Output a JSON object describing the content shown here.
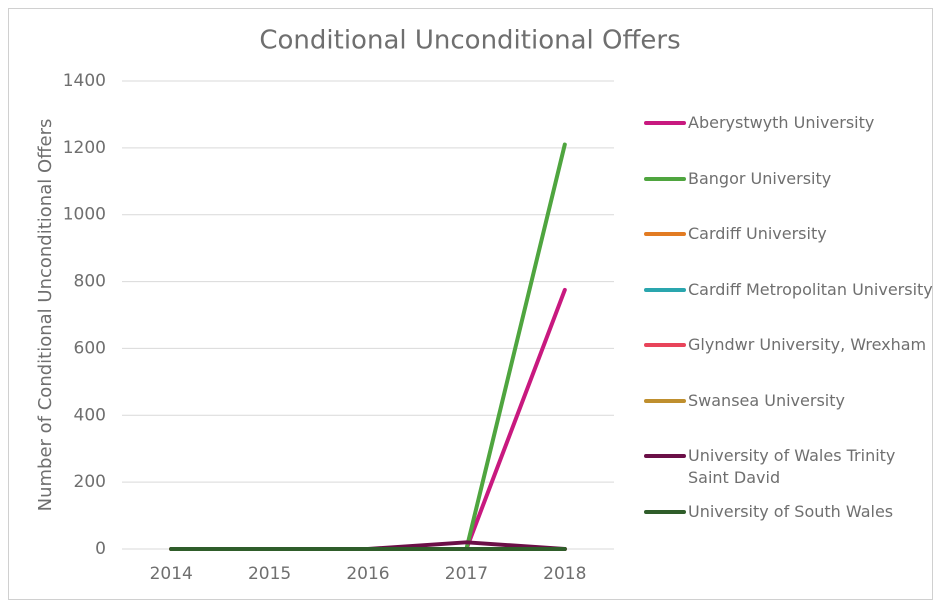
{
  "chart_data": {
    "type": "line",
    "title": "Conditional Unconditional Offers",
    "y_label": "Number of Conditional Unconditional Offers",
    "categories": [
      "2014",
      "2015",
      "2016",
      "2017",
      "2018"
    ],
    "series": [
      {
        "name": "Aberystwyth University",
        "color": "#c8197f",
        "values": [
          0,
          0,
          0,
          0,
          775
        ]
      },
      {
        "name": "Bangor University",
        "color": "#4fa53f",
        "values": [
          0,
          0,
          0,
          0,
          1210
        ]
      },
      {
        "name": "Cardiff University",
        "color": "#e27b22",
        "values": [
          0,
          0,
          0,
          0,
          0
        ]
      },
      {
        "name": "Cardiff Metropolitan University",
        "color": "#2aa6ae",
        "values": [
          0,
          0,
          0,
          0,
          0
        ]
      },
      {
        "name": "Glyndwr University, Wrexham",
        "color": "#e8445a",
        "values": [
          0,
          0,
          0,
          0,
          0
        ]
      },
      {
        "name": "Swansea University",
        "color": "#bf8f2e",
        "values": [
          0,
          0,
          0,
          0,
          0
        ]
      },
      {
        "name": "University of Wales Trinity Saint David",
        "color": "#6b0f47",
        "values": [
          0,
          0,
          0,
          20,
          0
        ]
      },
      {
        "name": "University of South Wales",
        "color": "#2f5d2a",
        "values": [
          0,
          0,
          0,
          0,
          0
        ]
      }
    ],
    "ylim": [
      0,
      1400
    ],
    "yticks": [
      0,
      200,
      400,
      600,
      800,
      1000,
      1200,
      1400
    ],
    "grid": true,
    "legend": "right"
  }
}
